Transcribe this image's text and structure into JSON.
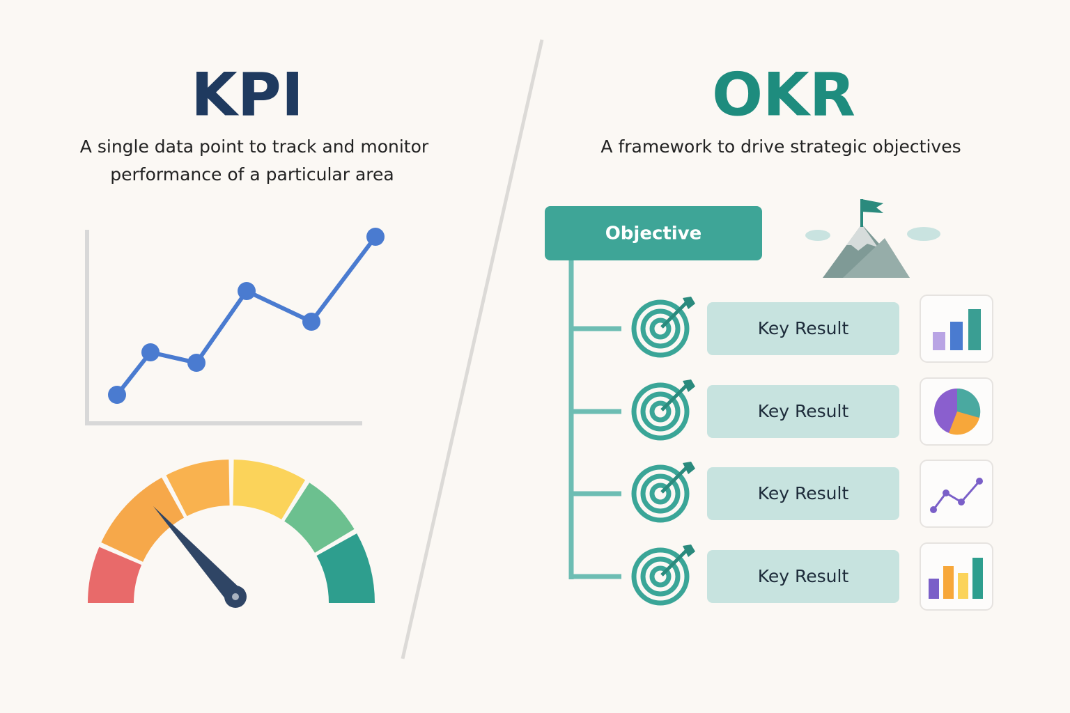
{
  "kpi": {
    "title": "KPI",
    "description": [
      "A single data point to track and monitor",
      "performance of a particular area"
    ]
  },
  "okr": {
    "title": "OKR",
    "description": "A framework to drive strategic objectives",
    "objective": "Objective",
    "key_results": [
      "Key Result",
      "Key Result",
      "Key Result",
      "Key Result"
    ]
  }
}
